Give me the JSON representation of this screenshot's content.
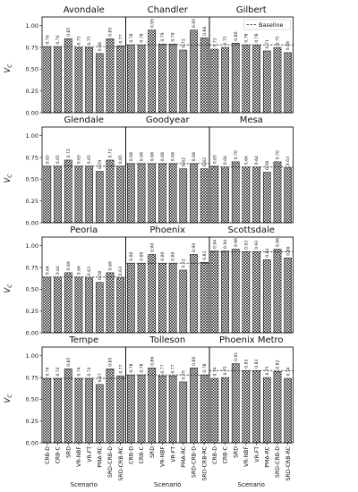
{
  "chart_data": {
    "type": "bar",
    "ylabel": "V",
    "ylabel_sub": "C",
    "xlabel": "Scenario",
    "ylim": [
      0,
      1.1
    ],
    "yticks": [
      "0.00",
      "0.25",
      "0.50",
      "0.75",
      "1.00"
    ],
    "legend": {
      "label": "Baseline",
      "placement": "top-right"
    },
    "categories": [
      "CRB-D",
      "CRB-C",
      "SRD",
      "VR-NBF",
      "VR-FT",
      "PMA-RC",
      "SRD-CRB-D",
      "SRD-CRB-RC"
    ],
    "panels": [
      {
        "title": "Avondale",
        "values": [
          0.76,
          0.76,
          0.85,
          0.75,
          0.75,
          0.68,
          0.85,
          0.77
        ],
        "labels": [
          "0.76",
          "0.76",
          "0.85",
          "0.75",
          "0.75",
          "0.68",
          "0.85",
          "0.77"
        ],
        "baseline": 0.76
      },
      {
        "title": "Chandler",
        "values": [
          0.78,
          0.78,
          0.95,
          0.79,
          0.79,
          0.72,
          0.95,
          0.86
        ],
        "labels": [
          "0.78",
          "0.78",
          "0.95",
          "0.79",
          "0.79",
          "0.72",
          "0.95",
          "0.86"
        ],
        "baseline": 0.78
      },
      {
        "title": "Gilbert",
        "values": [
          0.73,
          0.75,
          0.8,
          0.78,
          0.78,
          0.71,
          0.75,
          0.69
        ],
        "labels": [
          "0.73",
          "0.75",
          "0.80",
          "0.78",
          "0.78",
          "0.71",
          "0.75",
          "0.69"
        ],
        "baseline": 0.78
      },
      {
        "title": "Glendale",
        "values": [
          0.65,
          0.65,
          0.72,
          0.65,
          0.65,
          0.59,
          0.72,
          0.65
        ],
        "labels": [
          "0.65",
          "0.65",
          "0.72",
          "0.65",
          "0.65",
          "0.59",
          "0.72",
          "0.65"
        ],
        "baseline": 0.65
      },
      {
        "title": "Goodyear",
        "values": [
          0.68,
          0.68,
          0.68,
          0.68,
          0.68,
          0.62,
          0.68,
          0.62
        ],
        "labels": [
          "0.68",
          "0.68",
          "0.68",
          "0.68",
          "0.68",
          "0.62",
          "0.68",
          "0.62"
        ],
        "baseline": 0.68
      },
      {
        "title": "Mesa",
        "values": [
          0.65,
          0.64,
          0.7,
          0.64,
          0.64,
          0.58,
          0.7,
          0.63
        ],
        "labels": [
          "0.65",
          "0.64",
          "0.70",
          "0.64",
          "0.64",
          "0.58",
          "0.70",
          "0.63"
        ],
        "baseline": 0.64
      },
      {
        "title": "Peoria",
        "values": [
          0.64,
          0.64,
          0.69,
          0.64,
          0.63,
          0.58,
          0.69,
          0.63
        ],
        "labels": [
          "0.64",
          "0.64",
          "0.69",
          "0.64",
          "0.63",
          "0.58",
          "0.69",
          "0.63"
        ],
        "baseline": 0.64
      },
      {
        "title": "Phoenix",
        "values": [
          0.8,
          0.8,
          0.9,
          0.8,
          0.8,
          0.72,
          0.9,
          0.81
        ],
        "labels": [
          "0.80",
          "0.80",
          "0.90",
          "0.80",
          "0.80",
          "0.72",
          "0.90",
          "0.81"
        ],
        "baseline": 0.8
      },
      {
        "title": "Scottsdale",
        "values": [
          0.94,
          0.94,
          0.96,
          0.93,
          0.93,
          0.84,
          0.96,
          0.86
        ],
        "labels": [
          "0.94",
          "0.94",
          "0.96",
          "0.93",
          "0.93",
          "0.84",
          "0.96",
          "0.86"
        ],
        "baseline": 0.93
      },
      {
        "title": "Tempe",
        "values": [
          0.74,
          0.74,
          0.85,
          0.74,
          0.74,
          0.67,
          0.85,
          0.77
        ],
        "labels": [
          "0.74",
          "0.74",
          "0.85",
          "0.74",
          "0.74",
          "0.67",
          "0.85",
          "0.77"
        ],
        "baseline": 0.74
      },
      {
        "title": "Tolleson",
        "values": [
          0.78,
          0.78,
          0.86,
          0.77,
          0.77,
          0.7,
          0.86,
          0.78
        ],
        "labels": [
          "0.78",
          "0.78",
          "0.86",
          "0.77",
          "0.77",
          "0.70",
          "0.86",
          "0.78"
        ],
        "baseline": 0.78
      },
      {
        "title": "Phoenix Metro",
        "values": [
          0.74,
          0.75,
          0.91,
          0.83,
          0.83,
          0.75,
          0.82,
          0.74
        ],
        "labels": [
          "0.74",
          "0.75",
          "0.91",
          "0.83",
          "0.83",
          "0.75",
          "0.82",
          "0.74"
        ],
        "baseline": 0.83
      }
    ]
  }
}
